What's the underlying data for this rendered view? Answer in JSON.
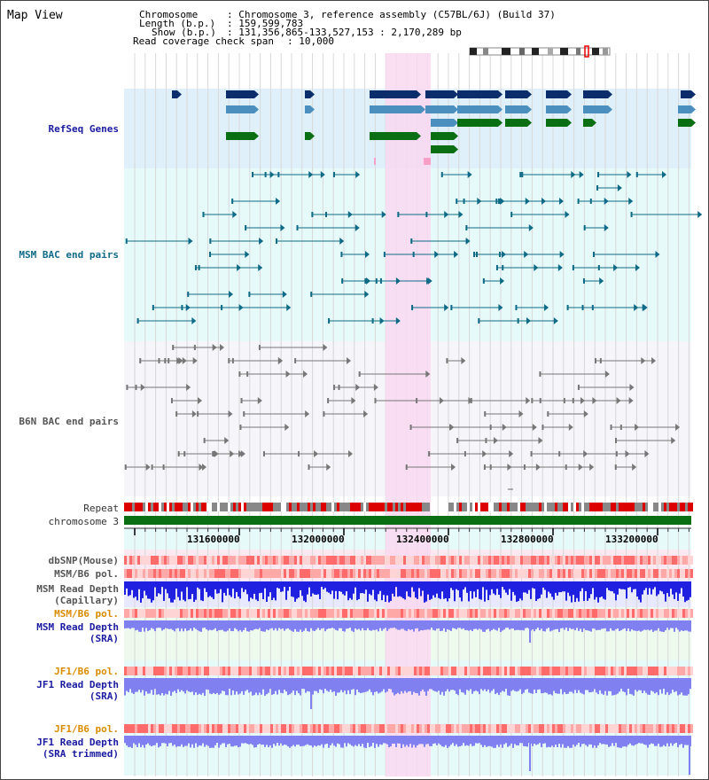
{
  "panel_title": "Map View",
  "header": {
    "chromosome_label": "Chromosome",
    "chromosome_value": ": Chromosome 3, reference assembly (C57BL/6J) (Build 37)",
    "length_label": "Length (b.p.)",
    "length_value": ": 159,599,783",
    "show_label": "Show (b.p.)",
    "show_value": ": 131,356,865-133,527,153 : 2,170,289 bp",
    "coverage_label": "Read coverage check span",
    "coverage_value": ": 10,000"
  },
  "tracks": {
    "refseq": "RefSeq Genes",
    "msm_bac": "MSM BAC end pairs",
    "b6n_bac": "B6N BAC end pairs",
    "repeat": "Repeat",
    "chromosome": "chromosome 3",
    "dbsnp": "dbSNP(Mouse)",
    "msm_b6_pol": "MSM/B6 pol.",
    "msm_read_depth": "MSM Read Depth",
    "msm_read_depth_sub": "(Capillary)",
    "msm_b6_pol2": "MSM/B6 pol.",
    "msm_read_depth_sra": "MSM Read Depth",
    "msm_read_depth_sra_sub": "(SRA)",
    "jf1_b6_pol": "JF1/B6 pol.",
    "jf1_read_depth": "JF1 Read Depth",
    "jf1_read_depth_sub": "(SRA)",
    "jf1_b6_pol2": "JF1/B6 pol.",
    "jf1_read_depth_trim": "JF1 Read Depth",
    "jf1_read_depth_trim_sub": "(SRA trimmed)"
  },
  "axis": {
    "ticks": [
      "131600000",
      "132000000",
      "132400000",
      "132800000",
      "133200000"
    ]
  },
  "colors": {
    "refseq_bg": "#dff0fa",
    "msm_bg": "#e6fafa",
    "b6n_bg": "#f5f5fa",
    "highlight": "#f9d8f0",
    "gene_dark": "#0b2d6b",
    "gene_mid": "#4a8fbe",
    "gene_green": "#0a6e12",
    "bac_teal": "#0e6a86",
    "bac_gray": "#777777",
    "depth_blue": "#2020e0",
    "depth_light": "#8080f0"
  }
}
